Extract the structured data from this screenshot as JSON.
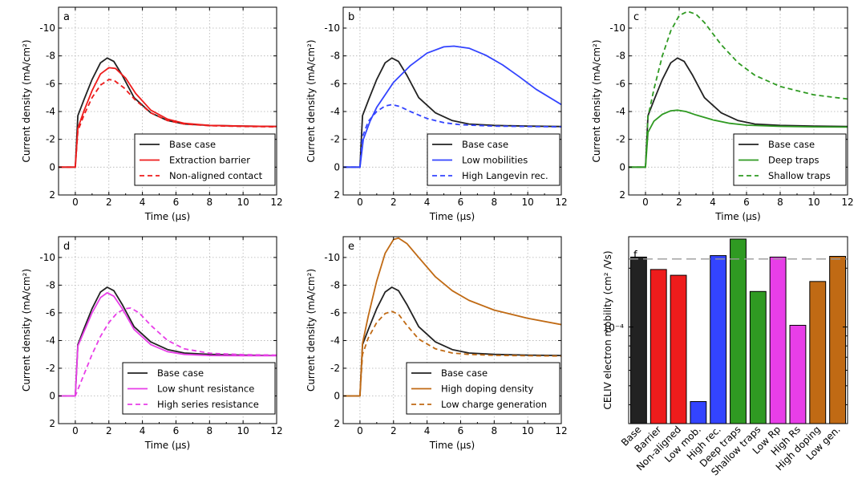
{
  "colors": {
    "black": "#222222",
    "red": "#ee1c1c",
    "blue": "#3344ff",
    "green": "#2f9a22",
    "magenta": "#e83ee8",
    "brown": "#c06a14",
    "grid": "#b0b0b0",
    "dash_ref": "#9a9a9a"
  },
  "chart_data": [
    {
      "type": "line",
      "panel": "a",
      "xlabel": "Time (μs)",
      "ylabel": "Current density (mA/cm²)",
      "xlim": [
        -1,
        12
      ],
      "ylim": [
        2,
        -11.5
      ],
      "y_inverted": true,
      "x_ticks": [
        "0",
        "2",
        "4",
        "6",
        "8",
        "10",
        "12"
      ],
      "y_ticks": [
        "2",
        "0",
        "-2",
        "-4",
        "-6",
        "-8",
        "-10"
      ],
      "grid": true,
      "legend_position": "lower right",
      "series": [
        {
          "name": "Base case",
          "color_key": "black",
          "dash": false,
          "x": [
            -1,
            0,
            0.15,
            0.5,
            1.0,
            1.5,
            1.9,
            2.3,
            2.8,
            3.5,
            4.5,
            5.5,
            6.5,
            8,
            10,
            12
          ],
          "y": [
            0,
            0,
            -3.7,
            -4.8,
            -6.3,
            -7.5,
            -7.85,
            -7.6,
            -6.6,
            -5.0,
            -3.9,
            -3.35,
            -3.1,
            -3.0,
            -2.95,
            -2.92
          ]
        },
        {
          "name": "Extraction barrier",
          "color_key": "red",
          "dash": false,
          "x": [
            -1,
            0,
            0.15,
            0.5,
            1.0,
            1.5,
            2.0,
            2.4,
            3.0,
            3.6,
            4.5,
            5.5,
            6.5,
            8,
            10,
            12
          ],
          "y": [
            0,
            0,
            -2.8,
            -4.0,
            -5.5,
            -6.7,
            -7.15,
            -7.1,
            -6.4,
            -5.3,
            -4.1,
            -3.45,
            -3.15,
            -3.0,
            -2.95,
            -2.92
          ]
        },
        {
          "name": "Non-aligned contact",
          "color_key": "red",
          "dash": true,
          "x": [
            -1,
            0,
            0.15,
            0.5,
            1.0,
            1.5,
            2.0,
            2.3,
            2.9,
            3.6,
            4.5,
            5.5,
            6.5,
            8,
            10,
            12
          ],
          "y": [
            0,
            0,
            -2.6,
            -3.7,
            -5.0,
            -5.9,
            -6.3,
            -6.25,
            -5.7,
            -4.8,
            -3.9,
            -3.35,
            -3.1,
            -2.98,
            -2.92,
            -2.9
          ]
        }
      ]
    },
    {
      "type": "line",
      "panel": "b",
      "xlabel": "Time (μs)",
      "ylabel": "Current density (mA/cm²)",
      "xlim": [
        -1,
        12
      ],
      "ylim": [
        2,
        -11.5
      ],
      "y_inverted": true,
      "x_ticks": [
        "0",
        "2",
        "4",
        "6",
        "8",
        "10",
        "12"
      ],
      "y_ticks": [
        "2",
        "0",
        "-2",
        "-4",
        "-6",
        "-8",
        "-10"
      ],
      "grid": true,
      "legend_position": "lower right",
      "series": [
        {
          "name": "Base case",
          "color_key": "black",
          "dash": false,
          "x": [
            -1,
            0,
            0.15,
            0.5,
            1.0,
            1.5,
            1.9,
            2.3,
            2.8,
            3.5,
            4.5,
            5.5,
            6.5,
            8,
            10,
            12
          ],
          "y": [
            0,
            0,
            -3.7,
            -4.8,
            -6.3,
            -7.5,
            -7.85,
            -7.6,
            -6.6,
            -5.0,
            -3.9,
            -3.35,
            -3.1,
            -3.0,
            -2.95,
            -2.92
          ]
        },
        {
          "name": "Low mobilities",
          "color_key": "blue",
          "dash": false,
          "x": [
            -1,
            0,
            0.2,
            0.6,
            1.0,
            2.0,
            3.0,
            4.0,
            5.0,
            5.6,
            6.5,
            7.5,
            8.5,
            9.5,
            10.5,
            12
          ],
          "y": [
            0,
            0,
            -2.0,
            -3.3,
            -4.3,
            -6.1,
            -7.3,
            -8.2,
            -8.65,
            -8.7,
            -8.55,
            -8.05,
            -7.35,
            -6.5,
            -5.6,
            -4.5
          ]
        },
        {
          "name": "High Langevin rec.",
          "color_key": "blue",
          "dash": true,
          "x": [
            -1,
            0,
            0.15,
            0.5,
            1.0,
            1.5,
            1.9,
            2.4,
            3.0,
            4.0,
            5.0,
            6.0,
            8,
            10,
            12
          ],
          "y": [
            0,
            0,
            -2.2,
            -3.3,
            -4.0,
            -4.4,
            -4.5,
            -4.35,
            -4.0,
            -3.5,
            -3.2,
            -3.05,
            -2.95,
            -2.92,
            -2.9
          ]
        }
      ]
    },
    {
      "type": "line",
      "panel": "c",
      "xlabel": "Time (μs)",
      "ylabel": "Current density (mA/cm²)",
      "xlim": [
        -1,
        12
      ],
      "ylim": [
        2,
        -11.5
      ],
      "y_inverted": true,
      "x_ticks": [
        "0",
        "2",
        "4",
        "6",
        "8",
        "10",
        "12"
      ],
      "y_ticks": [
        "2",
        "0",
        "-2",
        "-4",
        "-6",
        "-8",
        "-10"
      ],
      "grid": true,
      "legend_position": "lower right",
      "series": [
        {
          "name": "Base case",
          "color_key": "black",
          "dash": false,
          "x": [
            -1,
            0,
            0.15,
            0.5,
            1.0,
            1.5,
            1.9,
            2.3,
            2.8,
            3.5,
            4.5,
            5.5,
            6.5,
            8,
            10,
            12
          ],
          "y": [
            0,
            0,
            -3.7,
            -4.8,
            -6.3,
            -7.5,
            -7.85,
            -7.6,
            -6.6,
            -5.0,
            -3.9,
            -3.35,
            -3.1,
            -3.0,
            -2.95,
            -2.92
          ]
        },
        {
          "name": "Deep traps",
          "color_key": "green",
          "dash": false,
          "x": [
            -1,
            0,
            0.15,
            0.5,
            1.0,
            1.5,
            1.9,
            2.4,
            3.0,
            4.0,
            5.0,
            6.0,
            8,
            10,
            12
          ],
          "y": [
            0,
            0,
            -2.5,
            -3.3,
            -3.8,
            -4.05,
            -4.1,
            -4.0,
            -3.75,
            -3.4,
            -3.15,
            -3.02,
            -2.93,
            -2.9,
            -2.88
          ]
        },
        {
          "name": "Shallow traps",
          "color_key": "green",
          "dash": true,
          "x": [
            -1,
            0,
            0.15,
            0.5,
            1.0,
            1.5,
            2.0,
            2.5,
            3.0,
            3.5,
            4.5,
            5.5,
            6.5,
            8,
            10,
            12
          ],
          "y": [
            0,
            0,
            -3.6,
            -5.6,
            -8.0,
            -9.8,
            -10.9,
            -11.2,
            -11.0,
            -10.4,
            -8.8,
            -7.5,
            -6.6,
            -5.8,
            -5.2,
            -4.9
          ]
        }
      ]
    },
    {
      "type": "line",
      "panel": "d",
      "xlabel": "Time (μs)",
      "ylabel": "Current density (mA/cm²)",
      "xlim": [
        -1,
        12
      ],
      "ylim": [
        2,
        -11.5
      ],
      "y_inverted": true,
      "x_ticks": [
        "0",
        "2",
        "4",
        "6",
        "8",
        "10",
        "12"
      ],
      "y_ticks": [
        "2",
        "0",
        "-2",
        "-4",
        "-6",
        "-8",
        "-10"
      ],
      "grid": true,
      "legend_position": "lower right",
      "series": [
        {
          "name": "Base case",
          "color_key": "black",
          "dash": false,
          "x": [
            -1,
            0,
            0.15,
            0.5,
            1.0,
            1.5,
            1.9,
            2.3,
            2.8,
            3.5,
            4.5,
            5.5,
            6.5,
            8,
            10,
            12
          ],
          "y": [
            0,
            0,
            -3.7,
            -4.8,
            -6.3,
            -7.5,
            -7.85,
            -7.6,
            -6.6,
            -5.0,
            -3.9,
            -3.35,
            -3.1,
            -3.0,
            -2.95,
            -2.92
          ]
        },
        {
          "name": "Low shunt resistance",
          "color_key": "magenta",
          "dash": false,
          "x": [
            -1,
            0,
            0.15,
            0.5,
            1.0,
            1.5,
            1.9,
            2.3,
            2.8,
            3.5,
            4.5,
            5.5,
            6.5,
            8,
            10,
            12
          ],
          "y": [
            0,
            0,
            -3.6,
            -4.6,
            -6.0,
            -7.1,
            -7.45,
            -7.2,
            -6.3,
            -4.8,
            -3.7,
            -3.2,
            -3.0,
            -2.92,
            -2.9,
            -2.9
          ]
        },
        {
          "name": "High series resistance",
          "color_key": "magenta",
          "dash": true,
          "x": [
            -1,
            0,
            0.2,
            0.6,
            1.0,
            1.5,
            2.0,
            2.5,
            3.0,
            3.3,
            3.8,
            4.5,
            5.5,
            6.5,
            8,
            10,
            12
          ],
          "y": [
            0,
            0,
            -0.6,
            -1.8,
            -3.0,
            -4.3,
            -5.3,
            -6.0,
            -6.3,
            -6.35,
            -6.0,
            -5.1,
            -4.0,
            -3.4,
            -3.08,
            -2.98,
            -2.95
          ]
        }
      ]
    },
    {
      "type": "line",
      "panel": "e",
      "xlabel": "Time (μs)",
      "ylabel": "Current density (mA/cm²)",
      "xlim": [
        -1,
        12
      ],
      "ylim": [
        2,
        -11.5
      ],
      "y_inverted": true,
      "x_ticks": [
        "0",
        "2",
        "4",
        "6",
        "8",
        "10",
        "12"
      ],
      "y_ticks": [
        "2",
        "0",
        "-2",
        "-4",
        "-6",
        "-8",
        "-10"
      ],
      "grid": true,
      "legend_position": "lower right",
      "series": [
        {
          "name": "Base case",
          "color_key": "black",
          "dash": false,
          "x": [
            -1,
            0,
            0.15,
            0.5,
            1.0,
            1.5,
            1.9,
            2.3,
            2.8,
            3.5,
            4.5,
            5.5,
            6.5,
            8,
            10,
            12
          ],
          "y": [
            0,
            0,
            -3.7,
            -4.8,
            -6.3,
            -7.5,
            -7.85,
            -7.6,
            -6.6,
            -5.0,
            -3.9,
            -3.35,
            -3.1,
            -3.0,
            -2.95,
            -2.92
          ]
        },
        {
          "name": "High doping density",
          "color_key": "brown",
          "dash": false,
          "x": [
            -1,
            0,
            0.15,
            0.5,
            1.0,
            1.5,
            2.0,
            2.3,
            2.8,
            3.5,
            4.5,
            5.5,
            6.5,
            8,
            10,
            12
          ],
          "y": [
            0,
            0,
            -3.8,
            -5.8,
            -8.3,
            -10.3,
            -11.3,
            -11.4,
            -11.0,
            -10.0,
            -8.6,
            -7.6,
            -6.9,
            -6.2,
            -5.6,
            -5.15
          ]
        },
        {
          "name": "Low charge generation",
          "color_key": "brown",
          "dash": true,
          "x": [
            -1,
            0,
            0.15,
            0.5,
            1.0,
            1.5,
            1.9,
            2.3,
            2.8,
            3.5,
            4.5,
            5.5,
            6.5,
            8,
            10,
            12
          ],
          "y": [
            0,
            0,
            -3.0,
            -4.2,
            -5.3,
            -5.95,
            -6.1,
            -5.9,
            -5.1,
            -4.1,
            -3.4,
            -3.1,
            -3.0,
            -2.93,
            -2.9,
            -2.88
          ]
        }
      ]
    },
    {
      "type": "bar",
      "panel": "f",
      "ylabel": "CELIV electron mobility (cm² /Vs)",
      "yscale": "log",
      "ylim": [
        3.2e-05,
        0.00029
      ],
      "y_tick_label": "10⁻⁴",
      "y_tick_value": 0.0001,
      "reference_line": 0.000223,
      "grid": false,
      "categories": [
        "Base",
        "Barrier",
        "Non-aligned",
        "Low mob.",
        "High rec.",
        "Deep traps",
        "Shallow traps",
        "Low Rp",
        "High Rs",
        "High doping",
        "Low gen."
      ],
      "values": [
        0.000228,
        0.000197,
        0.000184,
        4.15e-05,
        0.000232,
        0.000282,
        0.000152,
        0.000228,
        0.000102,
        0.000171,
        0.00023
      ],
      "color_keys": [
        "black",
        "red",
        "red",
        "blue",
        "blue",
        "green",
        "green",
        "magenta",
        "magenta",
        "brown",
        "brown"
      ]
    }
  ]
}
